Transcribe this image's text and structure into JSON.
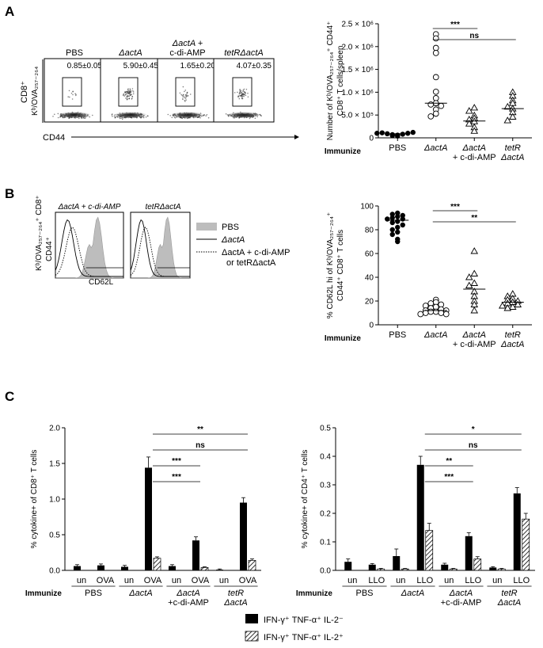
{
  "panel_labels": [
    "A",
    "B",
    "C"
  ],
  "flow_a": {
    "y_label_1": "CD8⁺",
    "y_label_2": "Kᵇ/OVA₂₅₇₋₂₆₄",
    "x_label": "CD44",
    "plots": [
      {
        "title": "PBS",
        "title2": "",
        "value": "0.85±0.05"
      },
      {
        "title": "ΔactA",
        "title2": "",
        "value": "5.90±0.45"
      },
      {
        "title": "ΔactA +",
        "title2": "c-di-AMP",
        "value": "1.65±0.20"
      },
      {
        "title": "tetRΔactA",
        "title2": "",
        "value": "4.07±0.35"
      }
    ]
  },
  "hist_b": {
    "titles": [
      "ΔactA + c-di-AMP",
      "tetRΔactA"
    ],
    "y_label_1": "Kᵇ/OVA₂₅₇₋₂₆₄⁺ CD8⁺",
    "y_label_2": "CD44⁺",
    "x_label": "CD62L",
    "legend": [
      {
        "label": "PBS",
        "style": "filled",
        "color": "#bdbdbd"
      },
      {
        "label": "ΔactA",
        "style": "solid"
      },
      {
        "label": "ΔactA + c-di-AMP",
        "label2": "or tetRΔactA",
        "style": "dotted"
      }
    ]
  },
  "chart_data": [
    {
      "type": "scatter",
      "panel": "A",
      "ylabel": "Number of Kᵇ/OVA₂₅₇₋₂₆₄⁺ CD44⁺",
      "ylabel2": "CD8⁺ T cells/spleen",
      "xlabel": "Immunize",
      "categories": [
        "PBS",
        "ΔactA",
        "ΔactA",
        "tetR"
      ],
      "categories2": [
        "",
        "",
        "+ c-di-AMP",
        "ΔactA"
      ],
      "yticks": [
        0,
        500000,
        1000000,
        1500000,
        2000000,
        2500000
      ],
      "ytick_labels": [
        "0",
        "5.0 × 10⁵",
        "1.0 × 10⁶",
        "1.5 × 10⁶",
        "2.0 × 10⁶",
        "2.5 × 10⁶"
      ],
      "ylim": [
        0,
        2500000
      ],
      "colors": {
        "PBS": "#000000"
      },
      "series": [
        {
          "category": 0,
          "marker": "filled-circle",
          "values": [
            40000,
            50000,
            60000,
            70000,
            80000,
            90000,
            100000,
            110000,
            120000,
            100000
          ],
          "median": 90000
        },
        {
          "category": 1,
          "marker": "open-circle",
          "values": [
            2270000,
            2180000,
            1970000,
            1860000,
            1330000,
            1010000,
            870000,
            760000,
            730000,
            700000,
            620000,
            530000,
            470000
          ],
          "median": 760000
        },
        {
          "category": 2,
          "marker": "open-triangle",
          "values": [
            660000,
            590000,
            490000,
            430000,
            400000,
            360000,
            310000,
            230000,
            150000
          ],
          "median": 370000
        },
        {
          "category": 3,
          "marker": "open-triangle",
          "values": [
            1000000,
            920000,
            820000,
            760000,
            680000,
            640000,
            560000,
            460000,
            380000
          ],
          "median": 640000
        }
      ],
      "significance": [
        {
          "from": 1,
          "to": 2,
          "label": "***"
        },
        {
          "from": 1,
          "to": 3,
          "label": "ns"
        }
      ]
    },
    {
      "type": "scatter",
      "panel": "B",
      "ylabel": "% CD62L hi of Kᵇ/OVA₂₅₇₋₂₆₄⁺",
      "ylabel2": "CD44⁺ CD8⁺ T cells",
      "xlabel": "Immunize",
      "categories": [
        "PBS",
        "ΔactA",
        "ΔactA",
        "tetR"
      ],
      "categories2": [
        "",
        "",
        "+ c-di-AMP",
        "ΔactA"
      ],
      "yticks": [
        0,
        20,
        40,
        60,
        80,
        100
      ],
      "ytick_labels": [
        "0",
        "20",
        "40",
        "60",
        "80",
        "100"
      ],
      "ylim": [
        0,
        100
      ],
      "series": [
        {
          "category": 0,
          "marker": "filled-circle",
          "values": [
            94,
            93,
            92,
            91,
            90,
            89,
            89,
            87,
            86,
            84,
            82,
            80,
            78,
            76,
            72,
            70
          ],
          "median": 88
        },
        {
          "category": 1,
          "marker": "open-circle",
          "values": [
            21,
            19,
            18,
            17,
            16,
            15,
            14,
            13,
            12,
            12,
            11,
            11,
            10,
            10,
            9,
            9
          ],
          "median": 12
        },
        {
          "category": 2,
          "marker": "open-triangle",
          "values": [
            62,
            43,
            40,
            35,
            33,
            28,
            24,
            20,
            17,
            12
          ],
          "median": 30
        },
        {
          "category": 3,
          "marker": "open-triangle",
          "values": [
            26,
            24,
            22,
            21,
            20,
            19,
            18,
            17,
            16,
            15,
            14
          ],
          "median": 19
        }
      ],
      "significance": [
        {
          "from": 1,
          "to": 2,
          "label": "***"
        },
        {
          "from": 1,
          "to": 3,
          "label": "**"
        }
      ]
    },
    {
      "type": "bar",
      "panel": "C",
      "ylabel": "% cytokine+ of CD8⁺ T cells",
      "xlabel": "Immunize",
      "ylim": [
        0,
        2.0
      ],
      "yticks": [
        0.0,
        0.5,
        1.0,
        1.5,
        2.0
      ],
      "ytick_labels": [
        "0.0",
        "0.5",
        "1.0",
        "1.5",
        "2.0"
      ],
      "groups": [
        "PBS",
        "ΔactA",
        "ΔactA",
        "tetR"
      ],
      "groups2": [
        "",
        "",
        "+c-di-AMP",
        "ΔactA"
      ],
      "categories": [
        "un",
        "OVA",
        "un",
        "OVA",
        "un",
        "OVA",
        "un",
        "OVA"
      ],
      "series": [
        {
          "name": "IFN-γ⁺ TNF-α⁺ IL-2⁻",
          "values": [
            0.06,
            0.07,
            0.05,
            1.44,
            0.06,
            0.42,
            0.01,
            0.95
          ],
          "errors": [
            0.02,
            0.02,
            0.02,
            0.15,
            0.02,
            0.05,
            0.01,
            0.07
          ]
        },
        {
          "name": "IFN-γ⁺ TNF-α⁺ IL-2⁺",
          "values": [
            0.0,
            0.0,
            0.0,
            0.17,
            0.0,
            0.04,
            0.0,
            0.14
          ],
          "errors": [
            0.0,
            0.0,
            0.0,
            0.02,
            0.0,
            0.01,
            0.0,
            0.02
          ]
        }
      ],
      "significance": [
        {
          "from": 3,
          "to": 5,
          "label": "***",
          "level": 0
        },
        {
          "from": 3,
          "to": 5,
          "label": "***",
          "level": 1
        },
        {
          "from": 3,
          "to": 7,
          "label": "ns",
          "level": 2
        },
        {
          "from": 3,
          "to": 7,
          "label": "**",
          "level": 3
        }
      ]
    },
    {
      "type": "bar",
      "panel": "C",
      "ylabel": "% cytokine+ of CD4⁺ T cells",
      "xlabel": "Immunize",
      "ylim": [
        0,
        0.5
      ],
      "yticks": [
        0.0,
        0.1,
        0.2,
        0.3,
        0.4,
        0.5
      ],
      "ytick_labels": [
        "0.0",
        "0.1",
        "0.2",
        "0.3",
        "0.4",
        "0.5"
      ],
      "groups": [
        "PBS",
        "ΔactA",
        "ΔactA",
        "tetR"
      ],
      "groups2": [
        "",
        "",
        "+c-di-AMP",
        "ΔactA"
      ],
      "categories": [
        "un",
        "LLO",
        "un",
        "LLO",
        "un",
        "LLO",
        "un",
        "LLO"
      ],
      "series": [
        {
          "name": "IFN-γ⁺ TNF-α⁺ IL-2⁻",
          "values": [
            0.03,
            0.02,
            0.05,
            0.37,
            0.02,
            0.12,
            0.01,
            0.27
          ],
          "errors": [
            0.01,
            0.004,
            0.025,
            0.03,
            0.005,
            0.012,
            0.003,
            0.02
          ]
        },
        {
          "name": "IFN-γ⁺ TNF-α⁺ IL-2⁺",
          "values": [
            0.0,
            0.005,
            0.005,
            0.14,
            0.005,
            0.04,
            0.005,
            0.18
          ],
          "errors": [
            0.0,
            0.002,
            0.002,
            0.025,
            0.002,
            0.008,
            0.002,
            0.02
          ]
        }
      ],
      "significance": [
        {
          "from": 3,
          "to": 5,
          "label": "***",
          "level": 0
        },
        {
          "from": 3,
          "to": 5,
          "label": "**",
          "level": 1
        },
        {
          "from": 3,
          "to": 7,
          "label": "ns",
          "level": 2
        },
        {
          "from": 3,
          "to": 7,
          "label": "*",
          "level": 3
        }
      ]
    }
  ],
  "legend_c": [
    {
      "label": "IFN-γ⁺ TNF-α⁺ IL-2⁻",
      "fill": "#000000",
      "pattern": "solid"
    },
    {
      "label": "IFN-γ⁺ TNF-α⁺ IL-2⁺",
      "fill": "#ffffff",
      "pattern": "hatched"
    }
  ]
}
